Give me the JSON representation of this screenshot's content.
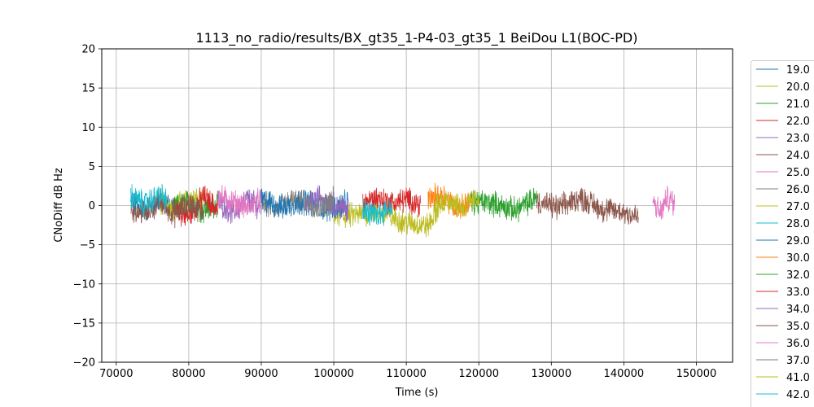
{
  "chart_data": {
    "type": "line",
    "title": "1113_no_radio/results/BX_gt35_1-P4-03_gt35_1 BeiDou L1(BOC-PD)",
    "xlabel": "Time (s)",
    "ylabel": "CNoDiff dB Hz",
    "xlim": [
      68000,
      155000
    ],
    "ylim": [
      -20,
      20
    ],
    "x_ticks": [
      70000,
      80000,
      90000,
      100000,
      110000,
      120000,
      130000,
      140000,
      150000
    ],
    "x_tick_labels": [
      "70000",
      "80000",
      "90000",
      "100000",
      "110000",
      "120000",
      "130000",
      "140000",
      "150000"
    ],
    "y_ticks": [
      -20,
      -15,
      -10,
      -5,
      0,
      5,
      10,
      15,
      20
    ],
    "y_tick_labels": [
      "−20",
      "−15",
      "−10",
      "−5",
      "0",
      "5",
      "10",
      "15",
      "20"
    ],
    "grid": true,
    "legend_position": "right, outside plot, clipped at bottom",
    "series": [
      {
        "name": "19.0",
        "color": "#1f77b4",
        "x": [
          72000,
          74000,
          76000,
          78000
        ],
        "values": [
          0.3,
          -0.5,
          0.6,
          -0.2
        ]
      },
      {
        "name": "20.0",
        "color": "#bcbd22",
        "x": [
          76000,
          78000,
          80000,
          82000
        ],
        "values": [
          0.5,
          -0.3,
          1.0,
          0.2
        ]
      },
      {
        "name": "21.0",
        "color": "#2ca02c",
        "x": [
          78000,
          80000,
          82000,
          84000
        ],
        "values": [
          -0.3,
          0.4,
          -0.6,
          0.3
        ]
      },
      {
        "name": "22.0",
        "color": "#d62728",
        "x": [
          78000,
          80000,
          82000,
          84000
        ],
        "values": [
          -0.8,
          -1.5,
          1.2,
          -0.5
        ]
      },
      {
        "name": "23.0",
        "color": "#9467bd",
        "x": [
          84000,
          86000,
          88000,
          90000
        ],
        "values": [
          0.6,
          -1.0,
          0.8,
          -0.2
        ]
      },
      {
        "name": "24.0",
        "color": "#8c564b",
        "x": [
          72000,
          74000,
          76000,
          78000,
          80000,
          82000
        ],
        "values": [
          -0.5,
          -1.0,
          0.4,
          -1.2,
          0.3,
          -0.8
        ]
      },
      {
        "name": "25.0",
        "color": "#e377c2",
        "x": [
          84000,
          86000,
          88000,
          90000
        ],
        "values": [
          1.2,
          0.5,
          -0.3,
          0.8
        ]
      },
      {
        "name": "26.0",
        "color": "#7f7f7f",
        "x": [
          90000,
          92000,
          94000,
          96000
        ],
        "values": [
          0.4,
          -0.5,
          0.6,
          0.2
        ]
      },
      {
        "name": "27.0",
        "color": "#bcbd22",
        "x": [
          100000,
          103000,
          106000,
          110000,
          113000,
          115000
        ],
        "values": [
          -1.5,
          -1.2,
          -0.8,
          -2.2,
          -2.6,
          0.5
        ]
      },
      {
        "name": "28.0",
        "color": "#17becf",
        "x": [
          72000,
          74000,
          76000,
          77000
        ],
        "values": [
          1.2,
          0.2,
          1.4,
          0.5
        ]
      },
      {
        "name": "29.0",
        "color": "#1f77b4",
        "x": [
          90000,
          93000,
          96000,
          99000,
          102000
        ],
        "values": [
          0.8,
          -0.3,
          0.6,
          -0.5,
          0.4
        ]
      },
      {
        "name": "30.0",
        "color": "#ff7f0e",
        "x": [
          113000,
          115000,
          117000,
          119000
        ],
        "values": [
          0.8,
          1.5,
          -0.4,
          0.6
        ]
      },
      {
        "name": "32.0",
        "color": "#2ca02c",
        "x": [
          119000,
          122000,
          125000,
          128000
        ],
        "values": [
          0.5,
          0.3,
          -0.6,
          1.0
        ]
      },
      {
        "name": "33.0",
        "color": "#d62728",
        "x": [
          104000,
          106000,
          108000,
          110000,
          112000
        ],
        "values": [
          0.4,
          1.0,
          0.3,
          0.8,
          0.2
        ]
      },
      {
        "name": "34.0",
        "color": "#9467bd",
        "x": [
          96000,
          98000,
          100000,
          102000
        ],
        "values": [
          -0.3,
          1.2,
          0.2,
          -0.6
        ]
      },
      {
        "name": "35.0",
        "color": "#8c564b",
        "x": [
          128000,
          131000,
          134000,
          137000,
          140000,
          142000
        ],
        "values": [
          0.5,
          -0.3,
          1.0,
          -0.5,
          -0.8,
          -1.5
        ]
      },
      {
        "name": "36.0",
        "color": "#e377c2",
        "x": [
          144000,
          145000,
          146000,
          147000
        ],
        "values": [
          0.5,
          -1.0,
          1.0,
          0.2
        ]
      },
      {
        "name": "37.0",
        "color": "#7f7f7f",
        "x": [
          96000,
          98000,
          100000
        ],
        "values": [
          0.6,
          -0.4,
          0.8
        ]
      },
      {
        "name": "41.0",
        "color": "#bcbd22",
        "x": [
          114000,
          116000,
          118000,
          120000
        ],
        "values": [
          0.2,
          0.8,
          -0.4,
          1.2
        ]
      },
      {
        "name": "42.0",
        "color": "#17becf",
        "x": [
          104000,
          106000,
          108000
        ],
        "values": [
          -0.8,
          -1.2,
          -0.2
        ]
      }
    ]
  }
}
